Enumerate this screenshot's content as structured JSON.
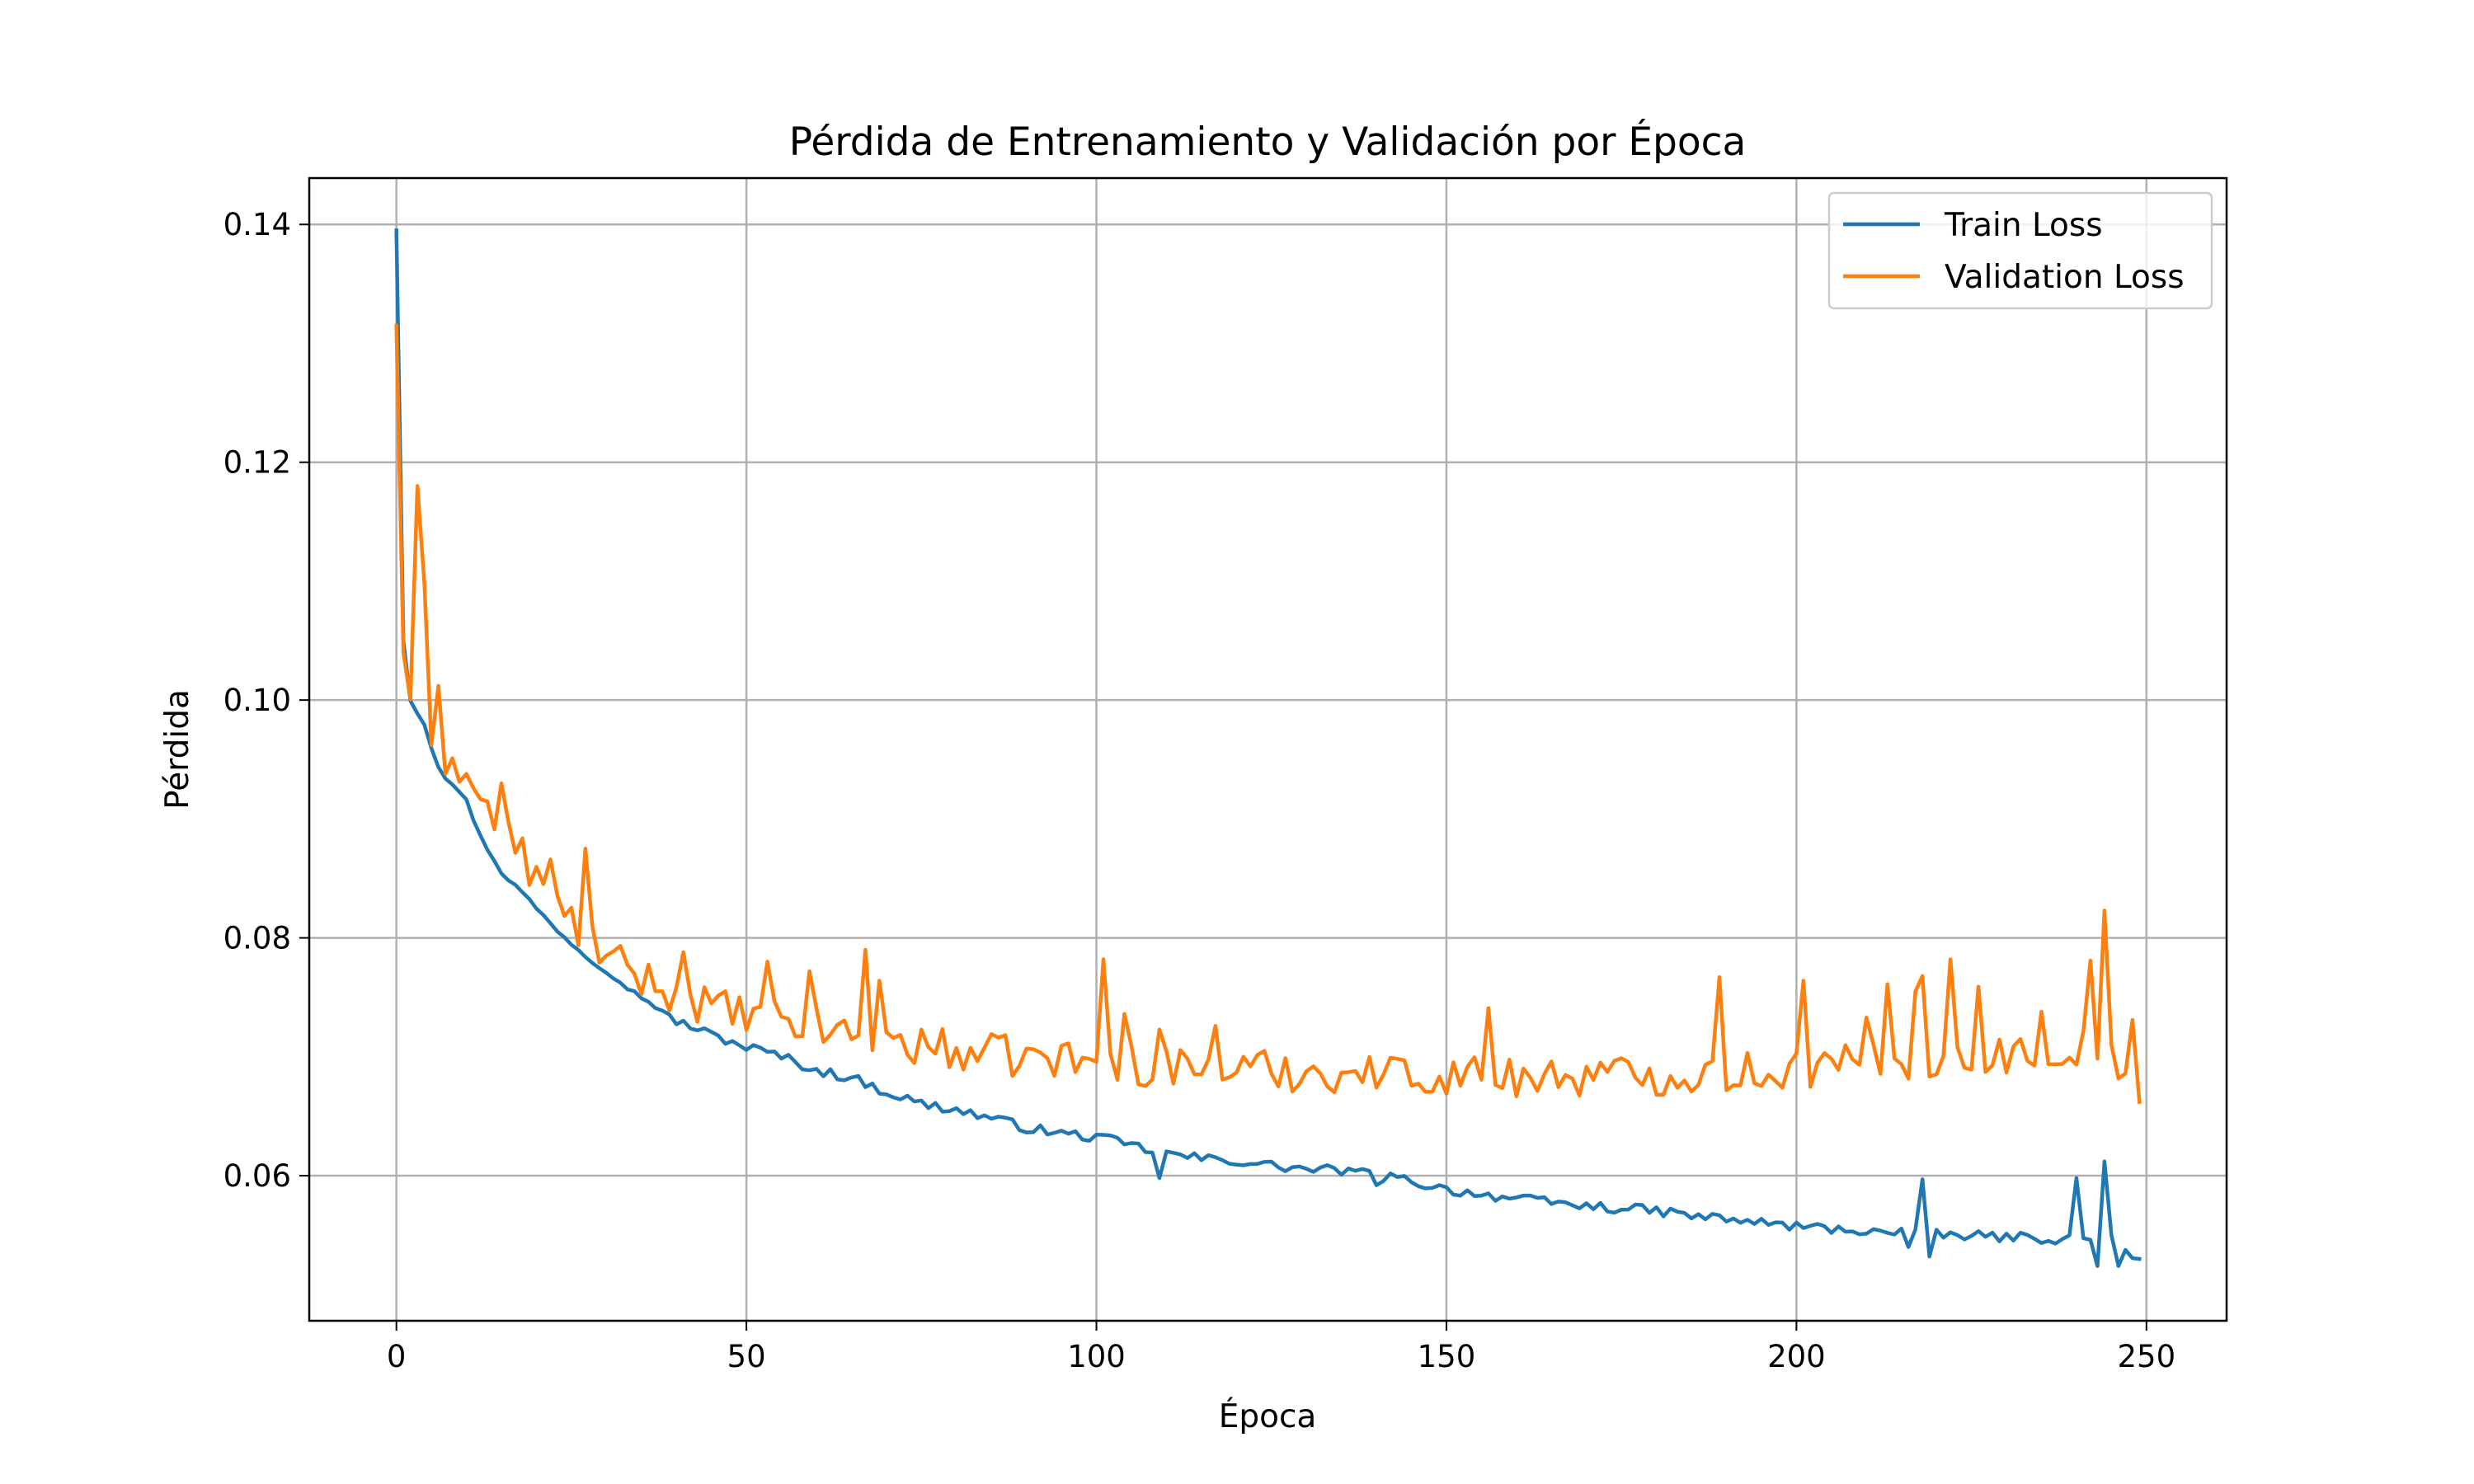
{
  "chart_data": {
    "type": "line",
    "title": "Pérdida de Entrenamiento y Validación por Época",
    "xlabel": "Época",
    "ylabel": "Pérdida",
    "xlim": [
      -12.45,
      261.45
    ],
    "ylim": [
      0.0478,
      0.1439
    ],
    "xticks": [
      0,
      50,
      100,
      150,
      200,
      250
    ],
    "yticks": [
      0.06,
      0.08,
      0.1,
      0.12,
      0.14
    ],
    "ytick_labels": [
      "0.06",
      "0.08",
      "0.10",
      "0.12",
      "0.14"
    ],
    "grid": true,
    "legend_position": "top-right",
    "series": [
      {
        "name": "Train Loss",
        "color": "#1f77b4",
        "key_points": [
          [
            0,
            0.1395
          ],
          [
            1,
            0.105
          ],
          [
            2,
            0.1
          ],
          [
            3,
            0.099
          ],
          [
            4,
            0.098
          ],
          [
            5,
            0.096
          ],
          [
            6,
            0.0945
          ],
          [
            7,
            0.0935
          ],
          [
            8,
            0.093
          ],
          [
            10,
            0.0915
          ],
          [
            12,
            0.0885
          ],
          [
            15,
            0.0855
          ],
          [
            18,
            0.0838
          ],
          [
            20,
            0.0825
          ],
          [
            22,
            0.0812
          ],
          [
            25,
            0.0795
          ],
          [
            28,
            0.078
          ],
          [
            30,
            0.0772
          ],
          [
            33,
            0.0758
          ],
          [
            35,
            0.075
          ],
          [
            40,
            0.073
          ],
          [
            45,
            0.0718
          ],
          [
            50,
            0.0708
          ],
          [
            55,
            0.07
          ],
          [
            60,
            0.0688
          ],
          [
            65,
            0.0682
          ],
          [
            70,
            0.067
          ],
          [
            75,
            0.066
          ],
          [
            80,
            0.0655
          ],
          [
            85,
            0.0648
          ],
          [
            90,
            0.064
          ],
          [
            95,
            0.0635
          ],
          [
            100,
            0.0632
          ],
          [
            105,
            0.0625
          ],
          [
            110,
            0.0618
          ],
          [
            115,
            0.0614
          ],
          [
            120,
            0.0612
          ],
          [
            125,
            0.0608
          ],
          [
            130,
            0.0605
          ],
          [
            135,
            0.0604
          ],
          [
            140,
            0.06
          ],
          [
            145,
            0.0595
          ],
          [
            150,
            0.0588
          ],
          [
            155,
            0.0584
          ],
          [
            160,
            0.058
          ],
          [
            165,
            0.0577
          ],
          [
            170,
            0.0574
          ],
          [
            175,
            0.0572
          ],
          [
            180,
            0.057
          ],
          [
            185,
            0.0566
          ],
          [
            190,
            0.0563
          ],
          [
            195,
            0.056
          ],
          [
            200,
            0.0557
          ],
          [
            205,
            0.0555
          ],
          [
            210,
            0.0553
          ],
          [
            215,
            0.0551
          ],
          [
            220,
            0.055
          ],
          [
            225,
            0.0549
          ],
          [
            230,
            0.0548
          ],
          [
            235,
            0.0547
          ],
          [
            240,
            0.0546
          ],
          [
            245,
            0.0545
          ],
          [
            249,
            0.053
          ]
        ],
        "spikes": [
          [
            109,
            0.0598
          ],
          [
            140,
            0.0592
          ],
          [
            216,
            0.054
          ],
          [
            218,
            0.0597
          ],
          [
            219,
            0.0532
          ],
          [
            240,
            0.0598
          ],
          [
            243,
            0.0524
          ],
          [
            244,
            0.0612
          ],
          [
            245,
            0.055
          ],
          [
            246,
            0.0524
          ],
          [
            249,
            0.053
          ]
        ],
        "noise": 0.0006
      },
      {
        "name": "Validation Loss",
        "color": "#ff7f0e",
        "key_points": [
          [
            0,
            0.1315
          ],
          [
            1,
            0.104
          ],
          [
            2,
            0.1005
          ],
          [
            3,
            0.118
          ],
          [
            4,
            0.108
          ],
          [
            5,
            0.0945
          ],
          [
            6,
            0.101
          ],
          [
            7,
            0.095
          ],
          [
            8,
            0.0955
          ],
          [
            10,
            0.0932
          ],
          [
            12,
            0.0915
          ],
          [
            15,
            0.089
          ],
          [
            18,
            0.0868
          ],
          [
            20,
            0.0848
          ],
          [
            22,
            0.083
          ],
          [
            25,
            0.0812
          ],
          [
            28,
            0.0795
          ],
          [
            30,
            0.078
          ],
          [
            35,
            0.0765
          ],
          [
            40,
            0.0752
          ],
          [
            45,
            0.074
          ],
          [
            50,
            0.0732
          ],
          [
            55,
            0.0728
          ],
          [
            60,
            0.0722
          ],
          [
            65,
            0.0718
          ],
          [
            70,
            0.0712
          ],
          [
            75,
            0.0708
          ],
          [
            80,
            0.0703
          ],
          [
            85,
            0.07
          ],
          [
            90,
            0.0698
          ],
          [
            95,
            0.0696
          ],
          [
            100,
            0.0694
          ],
          [
            105,
            0.0692
          ],
          [
            110,
            0.069
          ],
          [
            115,
            0.0689
          ],
          [
            120,
            0.0688
          ],
          [
            130,
            0.0686
          ],
          [
            140,
            0.0684
          ],
          [
            150,
            0.0683
          ],
          [
            160,
            0.0682
          ],
          [
            170,
            0.0682
          ],
          [
            180,
            0.0683
          ],
          [
            190,
            0.0685
          ],
          [
            200,
            0.0688
          ],
          [
            210,
            0.0692
          ],
          [
            220,
            0.0696
          ],
          [
            230,
            0.07
          ],
          [
            240,
            0.0704
          ],
          [
            245,
            0.0706
          ],
          [
            249,
            0.0662
          ]
        ],
        "spikes": [
          [
            3,
            0.118
          ],
          [
            6,
            0.1012
          ],
          [
            15,
            0.093
          ],
          [
            22,
            0.0866
          ],
          [
            27,
            0.0875
          ],
          [
            41,
            0.0788
          ],
          [
            53,
            0.078
          ],
          [
            59,
            0.0772
          ],
          [
            67,
            0.079
          ],
          [
            69,
            0.0764
          ],
          [
            101,
            0.0782
          ],
          [
            104,
            0.0736
          ],
          [
            109,
            0.0723
          ],
          [
            117,
            0.0726
          ],
          [
            144,
            0.0697
          ],
          [
            156,
            0.0741
          ],
          [
            189,
            0.0767
          ],
          [
            201,
            0.0764
          ],
          [
            210,
            0.0733
          ],
          [
            213,
            0.0761
          ],
          [
            217,
            0.0755
          ],
          [
            218,
            0.0768
          ],
          [
            222,
            0.0782
          ],
          [
            226,
            0.0759
          ],
          [
            235,
            0.0738
          ],
          [
            242,
            0.0781
          ],
          [
            244,
            0.0823
          ],
          [
            245,
            0.071
          ],
          [
            248,
            0.0731
          ],
          [
            249,
            0.0662
          ]
        ],
        "noise": 0.0022
      }
    ]
  }
}
